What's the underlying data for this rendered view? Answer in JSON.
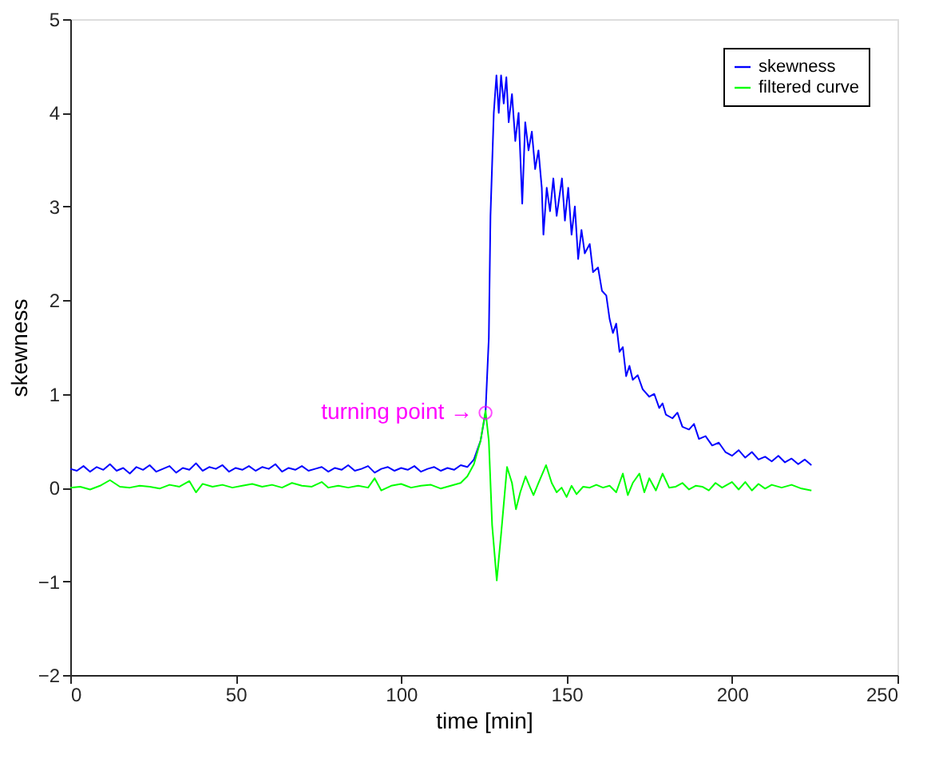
{
  "chart_data": {
    "type": "line",
    "xlabel": "time [min]",
    "ylabel": "skewness",
    "xlim": [
      0,
      250
    ],
    "ylim": [
      -2,
      5
    ],
    "xticks": [
      0,
      50,
      100,
      150,
      200,
      250
    ],
    "yticks": [
      -2,
      -1,
      0,
      1,
      2,
      3,
      4,
      5
    ],
    "grid": false,
    "legend": "top right",
    "line_style": "solid",
    "marker": "none",
    "annotations": [
      {
        "text": "turning point →",
        "x": 125.5,
        "y": 0.8
      }
    ],
    "series": [
      {
        "name": "skewness",
        "color": "#0000ff",
        "x": [
          0,
          2,
          4,
          6,
          8,
          10,
          12,
          14,
          16,
          18,
          20,
          22,
          24,
          26,
          28,
          30,
          32,
          34,
          36,
          38,
          40,
          42,
          44,
          46,
          48,
          50,
          52,
          54,
          56,
          58,
          60,
          62,
          64,
          66,
          68,
          70,
          72,
          74,
          76,
          78,
          80,
          82,
          84,
          86,
          88,
          90,
          92,
          94,
          96,
          98,
          100,
          102,
          104,
          106,
          108,
          110,
          112,
          114,
          116,
          118,
          120,
          122,
          124,
          125.5,
          126.5,
          127,
          128,
          128.8,
          129.5,
          130.2,
          131,
          131.8,
          132.5,
          133.5,
          134.5,
          135.5,
          136.6,
          137.5,
          138.5,
          139.5,
          140.5,
          141.5,
          142.5,
          143,
          144,
          145,
          146,
          147,
          148.6,
          149.5,
          150.5,
          151.5,
          152.5,
          153.5,
          154.5,
          155.5,
          157,
          158,
          159.5,
          160.7,
          162,
          163,
          164,
          165,
          166,
          167,
          168,
          169,
          170,
          171.5,
          173,
          175,
          176.5,
          178,
          179,
          180,
          182,
          183.5,
          185,
          187,
          188.5,
          190,
          192,
          194,
          196,
          198,
          200,
          202,
          204,
          206,
          208,
          210,
          212,
          214,
          216,
          218,
          220,
          222,
          224
        ],
        "values": [
          0.2,
          0.18,
          0.23,
          0.17,
          0.22,
          0.19,
          0.25,
          0.18,
          0.21,
          0.15,
          0.22,
          0.19,
          0.24,
          0.17,
          0.2,
          0.23,
          0.16,
          0.21,
          0.19,
          0.26,
          0.18,
          0.22,
          0.2,
          0.24,
          0.17,
          0.21,
          0.19,
          0.23,
          0.18,
          0.22,
          0.2,
          0.25,
          0.17,
          0.21,
          0.19,
          0.23,
          0.18,
          0.2,
          0.22,
          0.17,
          0.21,
          0.19,
          0.24,
          0.18,
          0.2,
          0.23,
          0.16,
          0.2,
          0.22,
          0.18,
          0.21,
          0.19,
          0.23,
          0.17,
          0.2,
          0.22,
          0.18,
          0.21,
          0.19,
          0.24,
          0.22,
          0.3,
          0.5,
          0.8,
          1.6,
          2.9,
          4.0,
          4.4,
          4.0,
          4.4,
          4.1,
          4.38,
          3.9,
          4.2,
          3.7,
          4.0,
          3.03,
          3.9,
          3.6,
          3.8,
          3.4,
          3.6,
          3.2,
          2.7,
          3.2,
          2.95,
          3.3,
          2.9,
          3.3,
          2.85,
          3.2,
          2.7,
          3.0,
          2.44,
          2.75,
          2.5,
          2.6,
          2.3,
          2.35,
          2.1,
          2.05,
          1.8,
          1.65,
          1.75,
          1.45,
          1.5,
          1.19,
          1.3,
          1.15,
          1.2,
          1.05,
          0.97,
          1.0,
          0.85,
          0.9,
          0.78,
          0.74,
          0.8,
          0.65,
          0.62,
          0.68,
          0.52,
          0.55,
          0.45,
          0.48,
          0.38,
          0.34,
          0.4,
          0.32,
          0.38,
          0.3,
          0.33,
          0.28,
          0.34,
          0.27,
          0.31,
          0.25,
          0.3,
          0.24
        ]
      },
      {
        "name": "filtered curve",
        "color": "#00ff00",
        "x": [
          0,
          3,
          6,
          9,
          12,
          15,
          18,
          21,
          24,
          27,
          30,
          33,
          36,
          38,
          40,
          43,
          46,
          49,
          52,
          55,
          58,
          61,
          64,
          67,
          70,
          73,
          76,
          78,
          81,
          84,
          87,
          90,
          92,
          94,
          97,
          100,
          103,
          106,
          109,
          112,
          115,
          118,
          120,
          122,
          124,
          125.5,
          126.5,
          127.5,
          128.9,
          130.2,
          132,
          133.5,
          134.7,
          136,
          137.6,
          139,
          140,
          141.5,
          143.8,
          145.5,
          147,
          148.5,
          150,
          151.5,
          153,
          155,
          157,
          159,
          161,
          163,
          165,
          167,
          168.5,
          170,
          172,
          173.5,
          175,
          177,
          179,
          181,
          183,
          185,
          187,
          189,
          191,
          193,
          195,
          197,
          200,
          202,
          204,
          206,
          208,
          210,
          212,
          215,
          218,
          221,
          224
        ],
        "values": [
          0.0,
          0.01,
          -0.02,
          0.02,
          0.08,
          0.01,
          0.0,
          0.02,
          0.01,
          -0.01,
          0.03,
          0.01,
          0.07,
          -0.05,
          0.04,
          0.01,
          0.03,
          0.0,
          0.02,
          0.04,
          0.01,
          0.03,
          0.0,
          0.05,
          0.02,
          0.01,
          0.06,
          0.0,
          0.02,
          0.0,
          0.02,
          0.0,
          0.1,
          -0.03,
          0.02,
          0.04,
          0.0,
          0.02,
          0.03,
          -0.01,
          0.02,
          0.05,
          0.12,
          0.25,
          0.5,
          0.82,
          0.5,
          -0.4,
          -0.99,
          -0.5,
          0.22,
          0.05,
          -0.23,
          -0.05,
          0.12,
          0.0,
          -0.08,
          0.05,
          0.24,
          0.05,
          -0.05,
          0.0,
          -0.1,
          0.02,
          -0.07,
          0.01,
          0.0,
          0.03,
          0.0,
          0.02,
          -0.05,
          0.15,
          -0.08,
          0.05,
          0.15,
          -0.05,
          0.1,
          -0.03,
          0.15,
          0.0,
          0.01,
          0.05,
          -0.02,
          0.02,
          0.01,
          -0.03,
          0.05,
          0.0,
          0.06,
          -0.02,
          0.06,
          -0.03,
          0.04,
          -0.01,
          0.03,
          0.0,
          0.03,
          -0.01,
          -0.03
        ]
      }
    ]
  }
}
